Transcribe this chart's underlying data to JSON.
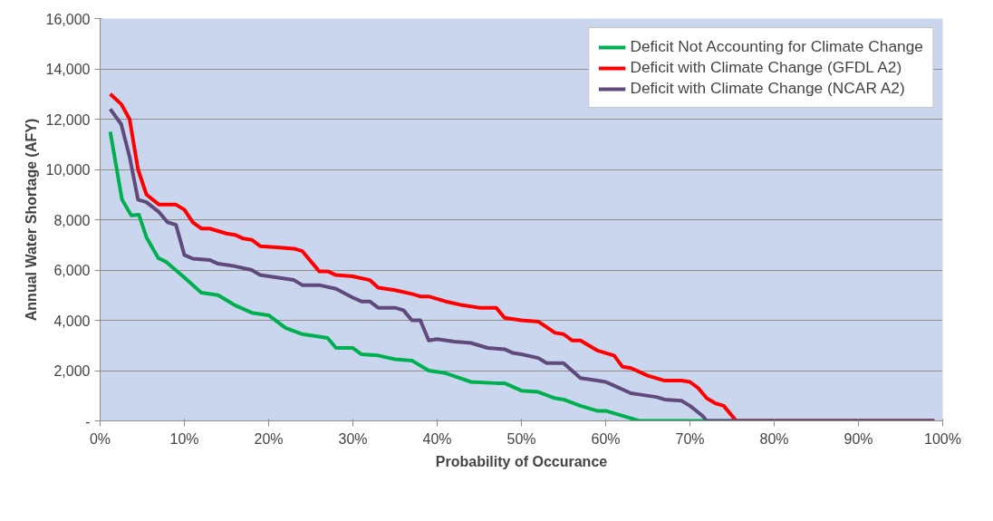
{
  "chart_data": {
    "type": "line",
    "xlabel": "Probability of Occurance",
    "ylabel": "Annual Water Shortage (AFY)",
    "xlim": [
      0,
      100
    ],
    "ylim": [
      0,
      16000
    ],
    "xticks": [
      {
        "value": 0,
        "label": "0%"
      },
      {
        "value": 10,
        "label": "10%"
      },
      {
        "value": 20,
        "label": "20%"
      },
      {
        "value": 30,
        "label": "30%"
      },
      {
        "value": 40,
        "label": "40%"
      },
      {
        "value": 50,
        "label": "50%"
      },
      {
        "value": 60,
        "label": "60%"
      },
      {
        "value": 70,
        "label": "70%"
      },
      {
        "value": 80,
        "label": "80%"
      },
      {
        "value": 90,
        "label": "90%"
      },
      {
        "value": 100,
        "label": "100%"
      }
    ],
    "yticks": [
      {
        "value": 0,
        "label": "-"
      },
      {
        "value": 2000,
        "label": "2,000"
      },
      {
        "value": 4000,
        "label": "4,000"
      },
      {
        "value": 6000,
        "label": "6,000"
      },
      {
        "value": 8000,
        "label": "8,000"
      },
      {
        "value": 10000,
        "label": "10,000"
      },
      {
        "value": 12000,
        "label": "12,000"
      },
      {
        "value": 14000,
        "label": "14,000"
      },
      {
        "value": 16000,
        "label": "16,000"
      }
    ],
    "grid": "y",
    "legend": "top right",
    "marker": "none",
    "line_style": "solid",
    "series": [
      {
        "name": "Deficit Not Accounting for Climate Change",
        "color": "#00b050",
        "x": [
          1.2,
          2.6,
          3.7,
          4.6,
          5.5,
          6.9,
          7.8,
          10,
          12,
          14,
          16,
          18,
          20,
          22,
          24,
          27,
          28,
          30,
          31,
          33,
          35,
          37,
          39,
          41,
          44,
          47,
          48,
          50,
          52,
          54,
          55,
          57,
          59,
          60,
          62,
          64,
          99
        ],
        "values": [
          11500,
          8800,
          8170,
          8200,
          7300,
          6480,
          6330,
          5700,
          5100,
          5000,
          4600,
          4300,
          4200,
          3700,
          3450,
          3300,
          2900,
          2900,
          2650,
          2600,
          2450,
          2400,
          2000,
          1900,
          1550,
          1500,
          1500,
          1200,
          1150,
          900,
          850,
          600,
          400,
          400,
          200,
          0,
          0
        ]
      },
      {
        "name": "Deficit with Climate Change (GFDL A2)",
        "color": "#ff0000",
        "x": [
          1.2,
          2.5,
          3.5,
          4.5,
          5.5,
          7,
          9,
          10,
          11,
          12,
          13,
          15,
          16,
          17,
          18,
          19,
          21,
          23,
          24,
          26,
          27,
          28,
          30,
          32,
          33,
          35,
          37,
          38,
          39,
          41,
          43,
          45,
          47,
          48,
          50,
          52,
          54,
          55,
          56,
          57,
          59,
          61,
          62,
          63,
          65,
          67,
          69,
          70,
          71,
          72,
          73,
          74,
          75.5,
          99
        ],
        "values": [
          13000,
          12600,
          12000,
          10000,
          9000,
          8600,
          8600,
          8400,
          7900,
          7650,
          7650,
          7450,
          7400,
          7250,
          7200,
          6950,
          6900,
          6850,
          6750,
          5950,
          5950,
          5800,
          5750,
          5600,
          5300,
          5200,
          5050,
          4950,
          4950,
          4750,
          4600,
          4500,
          4500,
          4100,
          4000,
          3950,
          3500,
          3450,
          3200,
          3200,
          2800,
          2600,
          2150,
          2100,
          1800,
          1600,
          1600,
          1550,
          1300,
          900,
          700,
          600,
          0,
          0
        ]
      },
      {
        "name": "Deficit with Climate Change (NCAR A2)",
        "color": "#604a7b",
        "x": [
          1.2,
          2.5,
          3.5,
          4.5,
          5.5,
          7,
          8,
          9,
          10,
          11,
          13,
          14,
          16,
          18,
          19,
          21,
          23,
          24,
          26,
          28,
          30,
          31,
          32,
          33,
          35,
          36,
          37,
          38,
          39,
          40,
          42,
          44,
          46,
          48,
          49,
          50,
          52,
          53,
          55,
          56,
          57,
          59,
          60,
          61,
          63,
          64,
          66,
          67,
          69,
          70,
          71.5,
          72,
          99
        ],
        "values": [
          12400,
          11800,
          10500,
          8800,
          8700,
          8300,
          7900,
          7800,
          6600,
          6450,
          6400,
          6250,
          6150,
          6000,
          5800,
          5700,
          5600,
          5400,
          5400,
          5250,
          4900,
          4750,
          4750,
          4500,
          4500,
          4400,
          4000,
          4000,
          3200,
          3250,
          3150,
          3100,
          2900,
          2850,
          2700,
          2650,
          2500,
          2300,
          2300,
          2000,
          1700,
          1600,
          1550,
          1400,
          1100,
          1050,
          950,
          850,
          800,
          600,
          200,
          0,
          0
        ]
      }
    ]
  }
}
